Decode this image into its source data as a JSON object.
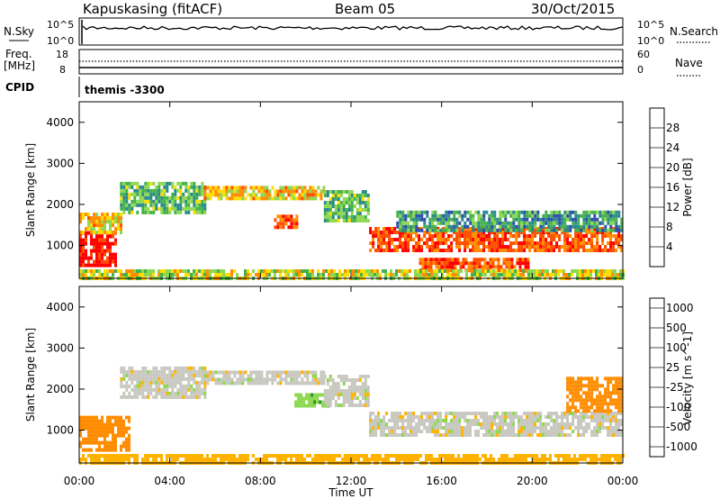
{
  "header": {
    "title": "Kapuskasing (fitACF)",
    "beam": "Beam 05",
    "date": "30/Oct/2015"
  },
  "top_panels": {
    "nsky_label": "N.Sky",
    "nsearch_label": "N.Search",
    "y_top_left": "10^5",
    "y_bot_left": "10^0",
    "y_top_right": "10^5",
    "y_bot_right": "10^0",
    "freq_label": "Freq.",
    "freq_unit": "[MHz]",
    "freq_ticks": [
      "18",
      "8"
    ],
    "nave_label": "Nave",
    "nave_ticks": [
      "60",
      "0"
    ],
    "cpid_label": "CPID",
    "cpid_value": "themis -3300"
  },
  "x_axis": {
    "label": "Time UT",
    "ticks": [
      "00:00",
      "04:00",
      "08:00",
      "12:00",
      "16:00",
      "20:00",
      "00:00"
    ]
  },
  "colors": {
    "red": "#ff0000",
    "orange_red": "#ff4d00",
    "orange": "#ff8c00",
    "amber": "#ffb300",
    "yellow": "#ffdd00",
    "light_green": "#8cd850",
    "green": "#44b14b",
    "dark_green": "#2f8f2f",
    "teal": "#2a8a8a",
    "blue": "#2a4db0",
    "deep_blue": "#0000ff",
    "grey": "#c8c8c0"
  },
  "chart_data": [
    {
      "type": "heatmap",
      "ylabel": "Slant Range [km]",
      "xlabel": "",
      "ylim": [
        200,
        4500
      ],
      "yticks": [
        "1000",
        "2000",
        "3000",
        "4000"
      ],
      "colorbar": {
        "label": "Power [dB]",
        "ticks": [
          "4",
          "8",
          "12",
          "16",
          "20",
          "24",
          "28"
        ],
        "range": [
          0,
          30
        ]
      },
      "regions": [
        {
          "t": [
            0.0,
            1.6
          ],
          "r": [
            550,
            1350
          ],
          "v": 28
        },
        {
          "t": [
            0.0,
            1.8
          ],
          "r": [
            1350,
            1800
          ],
          "v": 18
        },
        {
          "t": [
            1.8,
            5.5
          ],
          "r": [
            1800,
            2550
          ],
          "v": 12
        },
        {
          "t": [
            5.5,
            10.8
          ],
          "r": [
            2100,
            2450
          ],
          "v": 18
        },
        {
          "t": [
            8.6,
            9.6
          ],
          "r": [
            1400,
            1750
          ],
          "v": 24
        },
        {
          "t": [
            10.8,
            12.8
          ],
          "r": [
            1600,
            2350
          ],
          "v": 12
        },
        {
          "t": [
            12.8,
            24.0
          ],
          "r": [
            850,
            1450
          ],
          "v": 24
        },
        {
          "t": [
            14.0,
            24.0
          ],
          "r": [
            1350,
            1850
          ],
          "v": 10
        },
        {
          "t": [
            15.0,
            19.8
          ],
          "r": [
            400,
            700
          ],
          "v": 24
        },
        {
          "t": [
            0.0,
            24.0
          ],
          "r": [
            200,
            420
          ],
          "v": 16
        }
      ]
    },
    {
      "type": "heatmap",
      "ylabel": "Slant Range [km]",
      "xlabel": "Time UT",
      "ylim": [
        200,
        4500
      ],
      "yticks": [
        "1000",
        "2000",
        "3000",
        "4000"
      ],
      "colorbar": {
        "label": "Velocity [m s^-1]",
        "ticks": [
          "1000",
          "500",
          "100",
          "25",
          "-25",
          "-100",
          "-500",
          "-1000"
        ],
        "range": [
          -1200,
          1200
        ]
      },
      "regions": [
        {
          "t": [
            0.0,
            2.2
          ],
          "r": [
            550,
            1350
          ],
          "v": -300
        },
        {
          "t": [
            1.8,
            5.5
          ],
          "r": [
            1800,
            2550
          ],
          "v": 0
        },
        {
          "t": [
            5.5,
            10.8
          ],
          "r": [
            2100,
            2450
          ],
          "v": 0
        },
        {
          "t": [
            9.5,
            11.0
          ],
          "r": [
            1550,
            1900
          ],
          "v": 80
        },
        {
          "t": [
            10.8,
            12.8
          ],
          "r": [
            1600,
            2350
          ],
          "v": 0
        },
        {
          "t": [
            12.8,
            24.0
          ],
          "r": [
            850,
            1450
          ],
          "v": 0
        },
        {
          "t": [
            21.5,
            24.0
          ],
          "r": [
            1450,
            2300
          ],
          "v": -150
        },
        {
          "t": [
            0.0,
            24.0
          ],
          "r": [
            200,
            420
          ],
          "v": -60
        }
      ]
    }
  ]
}
